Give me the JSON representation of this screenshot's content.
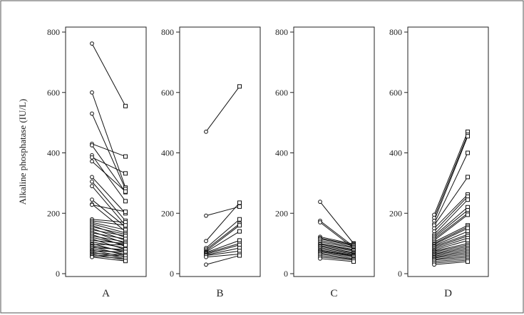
{
  "chart_data": {
    "type": "line",
    "ylabel": "Alkaline phosphatase (IU/L)",
    "ylim": [
      0,
      800
    ],
    "yticks": [
      0,
      200,
      400,
      600,
      800
    ],
    "grid": false,
    "start_marker": "circle",
    "end_marker": "square",
    "panels": [
      {
        "label": "A",
        "pairs": [
          [
            762,
            555
          ],
          [
            600,
            285
          ],
          [
            530,
            280
          ],
          [
            430,
            388
          ],
          [
            425,
            270
          ],
          [
            392,
            240
          ],
          [
            385,
            332
          ],
          [
            372,
            272
          ],
          [
            320,
            200
          ],
          [
            305,
            175
          ],
          [
            290,
            160
          ],
          [
            245,
            155
          ],
          [
            230,
            140
          ],
          [
            228,
            205
          ],
          [
            180,
            170
          ],
          [
            175,
            160
          ],
          [
            170,
            145
          ],
          [
            165,
            135
          ],
          [
            160,
            120
          ],
          [
            155,
            130
          ],
          [
            150,
            110
          ],
          [
            145,
            125
          ],
          [
            140,
            100
          ],
          [
            135,
            115
          ],
          [
            130,
            90
          ],
          [
            125,
            105
          ],
          [
            120,
            95
          ],
          [
            115,
            80
          ],
          [
            110,
            100
          ],
          [
            105,
            85
          ],
          [
            100,
            70
          ],
          [
            97,
            95
          ],
          [
            93,
            75
          ],
          [
            90,
            60
          ],
          [
            86,
            80
          ],
          [
            82,
            65
          ],
          [
            78,
            55
          ],
          [
            75,
            72
          ],
          [
            72,
            50
          ],
          [
            68,
            62
          ],
          [
            65,
            45
          ],
          [
            62,
            58
          ],
          [
            58,
            50
          ],
          [
            55,
            42
          ]
        ]
      },
      {
        "label": "B",
        "pairs": [
          [
            470,
            620
          ],
          [
            192,
            222
          ],
          [
            108,
            235
          ],
          [
            85,
            180
          ],
          [
            80,
            165
          ],
          [
            75,
            160
          ],
          [
            72,
            140
          ],
          [
            70,
            110
          ],
          [
            68,
            100
          ],
          [
            65,
            95
          ],
          [
            62,
            85
          ],
          [
            60,
            75
          ],
          [
            55,
            65
          ],
          [
            30,
            60
          ]
        ]
      },
      {
        "label": "C",
        "pairs": [
          [
            238,
            100
          ],
          [
            175,
            90
          ],
          [
            170,
            85
          ],
          [
            122,
            98
          ],
          [
            118,
            95
          ],
          [
            115,
            92
          ],
          [
            110,
            88
          ],
          [
            105,
            85
          ],
          [
            100,
            80
          ],
          [
            97,
            78
          ],
          [
            93,
            75
          ],
          [
            90,
            70
          ],
          [
            86,
            68
          ],
          [
            82,
            65
          ],
          [
            78,
            62
          ],
          [
            75,
            60
          ],
          [
            72,
            58
          ],
          [
            68,
            55
          ],
          [
            65,
            50
          ],
          [
            60,
            48
          ],
          [
            55,
            45
          ],
          [
            50,
            40
          ]
        ]
      },
      {
        "label": "D",
        "pairs": [
          [
            195,
            470
          ],
          [
            185,
            460
          ],
          [
            175,
            455
          ],
          [
            165,
            400
          ],
          [
            160,
            320
          ],
          [
            150,
            262
          ],
          [
            140,
            255
          ],
          [
            130,
            245
          ],
          [
            125,
            220
          ],
          [
            120,
            210
          ],
          [
            115,
            200
          ],
          [
            110,
            195
          ],
          [
            105,
            160
          ],
          [
            100,
            155
          ],
          [
            97,
            150
          ],
          [
            93,
            140
          ],
          [
            90,
            130
          ],
          [
            86,
            125
          ],
          [
            82,
            118
          ],
          [
            78,
            110
          ],
          [
            75,
            100
          ],
          [
            72,
            95
          ],
          [
            68,
            90
          ],
          [
            65,
            85
          ],
          [
            62,
            80
          ],
          [
            58,
            75
          ],
          [
            55,
            70
          ],
          [
            52,
            65
          ],
          [
            48,
            60
          ],
          [
            45,
            55
          ],
          [
            40,
            50
          ],
          [
            35,
            45
          ],
          [
            30,
            40
          ]
        ]
      }
    ]
  }
}
